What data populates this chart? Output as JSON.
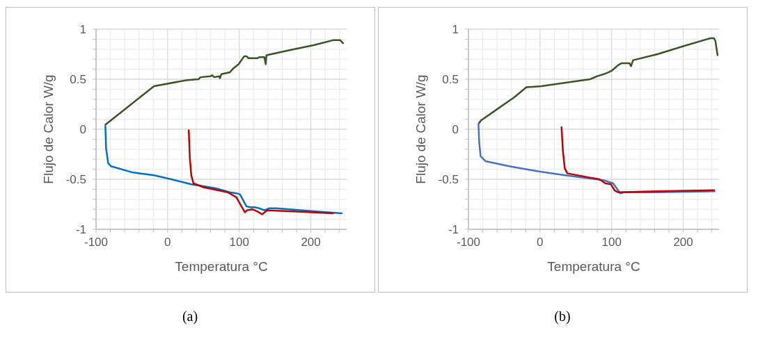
{
  "chart_data": [
    {
      "type": "line",
      "xlabel": "Temperatura °C",
      "ylabel": "Flujo de Calor W/g",
      "annotations": [
        "(a)"
      ],
      "grid": true,
      "xlim": [
        -100,
        250
      ],
      "ylim": [
        -1,
        1
      ],
      "xticks": [
        -100,
        {
          "value": -80,
          "label": null
        },
        {
          "value": -60,
          "label": null
        },
        {
          "value": -40,
          "label": null
        },
        {
          "value": -20,
          "label": null
        },
        0,
        {
          "value": 20,
          "label": null
        },
        {
          "value": 40,
          "label": null
        },
        {
          "value": 60,
          "label": null
        },
        {
          "value": 80,
          "label": null
        },
        100,
        {
          "value": 120,
          "label": null
        },
        {
          "value": 140,
          "label": null
        },
        {
          "value": 160,
          "label": null
        },
        {
          "value": 180,
          "label": null
        },
        200,
        {
          "value": 220,
          "label": null
        },
        {
          "value": 240,
          "label": null
        }
      ],
      "yticks": [
        -1,
        {
          "value": -0.9,
          "label": null
        },
        {
          "value": -0.8,
          "label": null
        },
        {
          "value": -0.7,
          "label": null
        },
        {
          "value": -0.6,
          "label": null
        },
        -0.5,
        {
          "value": -0.4,
          "label": null
        },
        {
          "value": -0.3,
          "label": null
        },
        {
          "value": -0.2,
          "label": null
        },
        {
          "value": -0.1,
          "label": null
        },
        0,
        {
          "value": 0.1,
          "label": null
        },
        {
          "value": 0.2,
          "label": null
        },
        {
          "value": 0.3,
          "label": null
        },
        {
          "value": 0.4,
          "label": null
        },
        0.5,
        {
          "value": 0.6,
          "label": null
        },
        {
          "value": 0.7,
          "label": null
        },
        {
          "value": 0.8,
          "label": null
        },
        {
          "value": 0.9,
          "label": null
        },
        1
      ],
      "series": [
        {
          "color": "#375623",
          "x": [
            -87,
            -19,
            26,
            43,
            46,
            60,
            62,
            65,
            72,
            73,
            75,
            87,
            92,
            99,
            107,
            110,
            113,
            125,
            128,
            135,
            137,
            138,
            170,
            204,
            231,
            241,
            245
          ],
          "values": [
            0.045,
            0.43,
            0.49,
            0.5,
            0.52,
            0.53,
            0.54,
            0.52,
            0.53,
            0.51,
            0.55,
            0.57,
            0.61,
            0.65,
            0.73,
            0.73,
            0.71,
            0.71,
            0.72,
            0.72,
            0.65,
            0.74,
            0.79,
            0.84,
            0.89,
            0.89,
            0.86
          ]
        },
        {
          "color": "#0070c0",
          "x": [
            -87,
            -86,
            -83,
            -79,
            -50,
            -19,
            5,
            33,
            50,
            67,
            87,
            96,
            101,
            110,
            115,
            122,
            128,
            135,
            142,
            152,
            204,
            243
          ],
          "values": [
            0.03,
            -0.19,
            -0.34,
            -0.37,
            -0.43,
            -0.46,
            -0.5,
            -0.55,
            -0.57,
            -0.59,
            -0.63,
            -0.64,
            -0.65,
            -0.77,
            -0.78,
            -0.78,
            -0.79,
            -0.81,
            -0.79,
            -0.79,
            -0.82,
            -0.84
          ]
        },
        {
          "color": "#c00000",
          "x": [
            29.5,
            31,
            33,
            36,
            50,
            84,
            96,
            103,
            108,
            111,
            118,
            125,
            132,
            139,
            170,
            231
          ],
          "values": [
            -0.01,
            -0.29,
            -0.46,
            -0.54,
            -0.58,
            -0.63,
            -0.68,
            -0.77,
            -0.83,
            -0.81,
            -0.8,
            -0.82,
            -0.85,
            -0.81,
            -0.82,
            -0.84
          ]
        }
      ]
    },
    {
      "type": "line",
      "xlabel": "Temperatura °C",
      "ylabel": "Flujo de Calor W/g",
      "annotations": [
        "(b)"
      ],
      "grid": true,
      "xlim": [
        -100,
        250
      ],
      "ylim": [
        -1,
        1
      ],
      "xticks": [
        -100,
        {
          "value": -80,
          "label": null
        },
        {
          "value": -60,
          "label": null
        },
        {
          "value": -40,
          "label": null
        },
        {
          "value": -20,
          "label": null
        },
        0,
        {
          "value": 20,
          "label": null
        },
        {
          "value": 40,
          "label": null
        },
        {
          "value": 60,
          "label": null
        },
        {
          "value": 80,
          "label": null
        },
        100,
        {
          "value": 120,
          "label": null
        },
        {
          "value": 140,
          "label": null
        },
        {
          "value": 160,
          "label": null
        },
        {
          "value": 180,
          "label": null
        },
        200,
        {
          "value": 220,
          "label": null
        },
        {
          "value": 240,
          "label": null
        }
      ],
      "yticks": [
        -1,
        {
          "value": -0.9,
          "label": null
        },
        {
          "value": -0.8,
          "label": null
        },
        {
          "value": -0.7,
          "label": null
        },
        {
          "value": -0.6,
          "label": null
        },
        -0.5,
        {
          "value": -0.4,
          "label": null
        },
        {
          "value": -0.3,
          "label": null
        },
        {
          "value": -0.2,
          "label": null
        },
        {
          "value": -0.1,
          "label": null
        },
        0,
        {
          "value": 0.1,
          "label": null
        },
        {
          "value": 0.2,
          "label": null
        },
        {
          "value": 0.3,
          "label": null
        },
        {
          "value": 0.4,
          "label": null
        },
        0.5,
        {
          "value": 0.6,
          "label": null
        },
        {
          "value": 0.7,
          "label": null
        },
        {
          "value": 0.8,
          "label": null
        },
        {
          "value": 0.9,
          "label": null
        },
        1
      ],
      "series": [
        {
          "color": "#375623",
          "x": [
            -85.5,
            -82,
            -62,
            -36,
            -19,
            2,
            41,
            70,
            80,
            89,
            96,
            101,
            109,
            114,
            125,
            127,
            130,
            164,
            200,
            238,
            243,
            245,
            248
          ],
          "values": [
            0.06,
            0.09,
            0.19,
            0.32,
            0.42,
            0.43,
            0.47,
            0.5,
            0.53,
            0.55,
            0.57,
            0.59,
            0.64,
            0.66,
            0.66,
            0.63,
            0.69,
            0.75,
            0.83,
            0.91,
            0.91,
            0.88,
            0.74
          ]
        },
        {
          "color": "#4472c4",
          "x": [
            -86,
            -85,
            -83,
            -76,
            -43,
            -11,
            -3,
            35,
            67,
            89,
            102,
            109,
            112,
            118,
            164,
            244
          ],
          "values": [
            0.05,
            -0.13,
            -0.27,
            -0.32,
            -0.37,
            -0.41,
            -0.42,
            -0.46,
            -0.49,
            -0.51,
            -0.54,
            -0.61,
            -0.64,
            -0.63,
            -0.63,
            -0.62
          ]
        },
        {
          "color": "#c00000",
          "x": [
            30,
            32,
            34.5,
            38,
            67,
            83,
            91,
            99,
            104,
            109,
            164,
            243
          ],
          "values": [
            0.02,
            -0.22,
            -0.39,
            -0.44,
            -0.48,
            -0.5,
            -0.54,
            -0.55,
            -0.61,
            -0.63,
            -0.62,
            -0.61
          ]
        }
      ]
    }
  ]
}
